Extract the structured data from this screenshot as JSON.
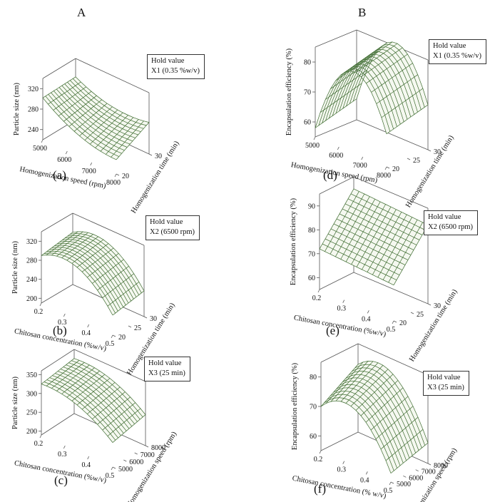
{
  "column_headers": {
    "A": "A",
    "B": "B"
  },
  "colors": {
    "surface": "#3d6b2f",
    "surface_fill": "#f5f8f0",
    "box": "#555555"
  },
  "chart_data": [
    {
      "id": "a",
      "type": "surface",
      "panel_label": "(a)",
      "hold": {
        "title": "Hold value",
        "value": "X1 (0.35 %w/v)"
      },
      "x_axis": {
        "label": "Homogenization speed (rpm)",
        "range": [
          5000,
          8000
        ],
        "ticks": [
          "5000",
          "6000",
          "7000",
          "8000"
        ]
      },
      "y_axis": {
        "label": "Homogenization time (min)",
        "range": [
          20,
          30
        ],
        "ticks": [
          "20",
          "30"
        ]
      },
      "z_axis": {
        "label": "Particle size (nm)",
        "range": [
          220,
          340
        ],
        "ticks": [
          "240",
          "280",
          "320"
        ]
      },
      "surface": {
        "corners": [
          [
            5000,
            20,
            302
          ],
          [
            8000,
            20,
            248
          ],
          [
            5000,
            30,
            304
          ],
          [
            8000,
            30,
            282
          ]
        ],
        "curvature": -14
      }
    },
    {
      "id": "b",
      "type": "surface",
      "panel_label": "(b)",
      "hold": {
        "title": "Hold value",
        "value": "X2 (6500 rpm)"
      },
      "x_axis": {
        "label": "Chitosan concentration (%w/v)",
        "range": [
          0.2,
          0.5
        ],
        "ticks": [
          "0.2",
          "0.3",
          "0.4",
          "0.5"
        ]
      },
      "y_axis": {
        "label": "Homogenization time (min)",
        "range": [
          20,
          30
        ],
        "ticks": [
          "20",
          "25",
          "30"
        ]
      },
      "z_axis": {
        "label": "Particle size (nm)",
        "range": [
          190,
          340
        ],
        "ticks": [
          "200",
          "240",
          "280",
          "320"
        ]
      },
      "surface": {
        "corners": [
          [
            0.2,
            20,
            290
          ],
          [
            0.5,
            20,
            232
          ],
          [
            0.2,
            30,
            300
          ],
          [
            0.5,
            30,
            244
          ]
        ],
        "curvature": 38
      }
    },
    {
      "id": "c",
      "type": "surface",
      "panel_label": "(c)",
      "hold": {
        "title": "Hold value",
        "value": "X3 (25 min)"
      },
      "x_axis": {
        "label": "Chitosan concentration (%w/v)",
        "range": [
          0.2,
          0.5
        ],
        "ticks": [
          "0.2",
          "0.3",
          "0.4",
          "0.5"
        ]
      },
      "y_axis": {
        "label": "Homogenization speed (rpm)",
        "range": [
          5000,
          8000
        ],
        "ticks": [
          "5000",
          "6000",
          "7000",
          "8000"
        ]
      },
      "z_axis": {
        "label": "Particle size (nm)",
        "range": [
          190,
          360
        ],
        "ticks": [
          "200",
          "250",
          "300",
          "350"
        ]
      },
      "surface": {
        "corners": [
          [
            0.2,
            5000,
            325
          ],
          [
            0.5,
            5000,
            255
          ],
          [
            0.2,
            8000,
            336
          ],
          [
            0.5,
            8000,
            272
          ]
        ],
        "curvature": 22
      }
    },
    {
      "id": "d",
      "type": "surface",
      "panel_label": "(d)",
      "hold": {
        "title": "Hold value",
        "value": "X1 (0.35 %w/v)"
      },
      "x_axis": {
        "label": "Homogenization speed (rpm)",
        "range": [
          5000,
          8000
        ],
        "ticks": [
          "5000",
          "6000",
          "7000",
          "8000"
        ]
      },
      "y_axis": {
        "label": "Homogenization time (min)",
        "range": [
          20,
          30
        ],
        "ticks": [
          "20",
          "25",
          "30"
        ]
      },
      "z_axis": {
        "label": "Encapsulation efficiency (%)",
        "range": [
          55,
          85
        ],
        "ticks": [
          "60",
          "70",
          "80"
        ]
      },
      "surface": {
        "corners": [
          [
            5000,
            20,
            58
          ],
          [
            8000,
            20,
            66
          ],
          [
            5000,
            30,
            62
          ],
          [
            8000,
            30,
            70
          ]
        ],
        "curvature": 20
      }
    },
    {
      "id": "e",
      "type": "surface",
      "panel_label": "(e)",
      "hold": {
        "title": "Hold value",
        "value": "X2 (6500 rpm)"
      },
      "x_axis": {
        "label": "Chitosan concentration (%w/v)",
        "range": [
          0.2,
          0.5
        ],
        "ticks": [
          "0.2",
          "0.3",
          "0.4",
          "0.5"
        ]
      },
      "y_axis": {
        "label": "Homogenization time (min)",
        "range": [
          20,
          30
        ],
        "ticks": [
          "20",
          "25",
          "30"
        ]
      },
      "z_axis": {
        "label": "Encapsulation efficiency (%)",
        "range": [
          55,
          95
        ],
        "ticks": [
          "60",
          "70",
          "80",
          "90"
        ]
      },
      "surface": {
        "corners": [
          [
            0.2,
            20,
            72
          ],
          [
            0.5,
            20,
            70
          ],
          [
            0.2,
            30,
            90
          ],
          [
            0.5,
            30,
            88
          ]
        ],
        "curvature": 0
      }
    },
    {
      "id": "f",
      "type": "surface",
      "panel_label": "(f)",
      "hold": {
        "title": "Hold value",
        "value": "X3 (25 min)"
      },
      "x_axis": {
        "label": "Chitosan concentration (% w/v)",
        "range": [
          0.2,
          0.5
        ],
        "ticks": [
          "0.2",
          "0.3",
          "0.4",
          "0.5"
        ]
      },
      "y_axis": {
        "label": "Homogenization speed (rpm)",
        "range": [
          5000,
          8000
        ],
        "ticks": [
          "5000",
          "6000",
          "7000",
          "8000"
        ]
      },
      "z_axis": {
        "label": "Encapsulation efficiency (%)",
        "range": [
          55,
          85
        ],
        "ticks": [
          "60",
          "70",
          "80"
        ]
      },
      "surface": {
        "corners": [
          [
            0.2,
            5000,
            70
          ],
          [
            0.5,
            5000,
            58
          ],
          [
            0.2,
            8000,
            78
          ],
          [
            0.5,
            8000,
            62
          ]
        ],
        "curvature": 10
      }
    }
  ]
}
